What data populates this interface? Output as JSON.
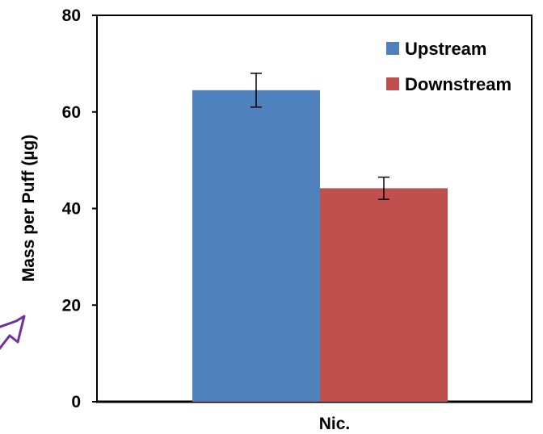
{
  "chart_data": {
    "type": "bar",
    "categories": [
      "Nic."
    ],
    "series": [
      {
        "name": "Upstream",
        "values": [
          64.5
        ],
        "error": [
          3.5
        ],
        "color": "#4F81BD"
      },
      {
        "name": "Downstream",
        "values": [
          44.2
        ],
        "error": [
          2.3
        ],
        "color": "#C0504D"
      }
    ],
    "xlabel": "",
    "ylabel": "Mass per Puff (µg)",
    "ylim": [
      0,
      80
    ],
    "yticks": [
      "0",
      "20",
      "40",
      "60",
      "80"
    ],
    "grid": false,
    "legend_position": "top-right"
  },
  "decoration": {
    "icon": "arrow-cursor-icon",
    "color": "#7030A0"
  }
}
